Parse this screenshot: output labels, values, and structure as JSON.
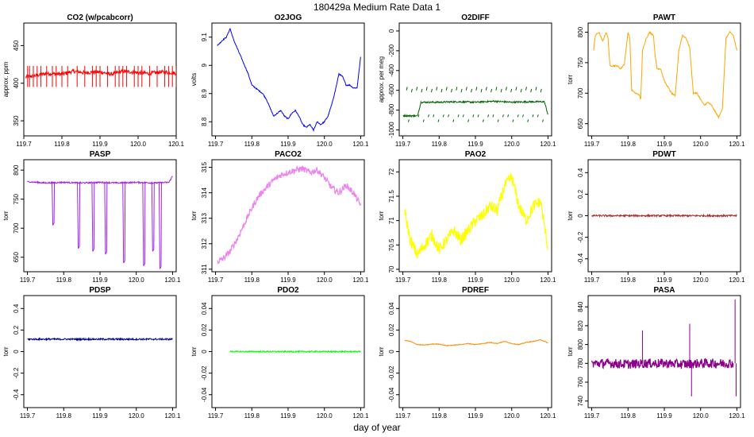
{
  "figure": {
    "title": "180429a   Medium Rate Data 1",
    "xlabel": "day of year"
  },
  "chart_data": [
    {
      "type": "line",
      "title": "CO2 (w/pcabcorr)",
      "ylabel": "approx. ppm",
      "color": "#ff0000",
      "xlim": [
        119.7,
        120.1
      ],
      "ylim": [
        330,
        480
      ],
      "xticks": [
        "119.7",
        "119.8",
        "119.9",
        "120.0",
        "120.1"
      ],
      "yticks": [
        350,
        400,
        450
      ],
      "series": [
        {
          "x": [
            119.705,
            119.73,
            119.76,
            119.8,
            119.83,
            119.86,
            119.9,
            119.93,
            119.96,
            120.0,
            120.03,
            120.06,
            120.09,
            120.1
          ],
          "y": [
            408,
            410,
            413,
            412,
            416,
            414,
            415,
            412,
            416,
            414,
            413,
            415,
            414,
            413
          ]
        }
      ],
      "spikes": {
        "x": [
          119.71,
          119.715,
          119.725,
          119.735,
          119.745,
          119.76,
          119.775,
          119.785,
          119.8,
          119.815,
          119.84,
          119.86,
          119.88,
          119.89,
          119.9,
          119.92,
          119.94,
          119.95,
          119.96,
          119.97,
          119.99,
          120.0,
          120.01,
          120.03,
          120.05,
          120.07,
          120.08,
          120.09,
          120.1
        ],
        "low": 395,
        "high": 423
      }
    },
    {
      "type": "line",
      "title": "O2JOG",
      "ylabel": "volts",
      "color": "#0000ff",
      "xlim": [
        119.69,
        120.11
      ],
      "ylim": [
        8.75,
        9.15
      ],
      "xticks": [
        "119.7",
        "119.8",
        "119.9",
        "120.0",
        "120.1"
      ],
      "yticks": [
        8.8,
        8.9,
        9.0,
        9.1
      ],
      "series": [
        {
          "x": [
            119.705,
            119.72,
            119.73,
            119.74,
            119.75,
            119.76,
            119.77,
            119.78,
            119.79,
            119.8,
            119.81,
            119.82,
            119.83,
            119.84,
            119.85,
            119.86,
            119.87,
            119.88,
            119.89,
            119.9,
            119.91,
            119.92,
            119.93,
            119.94,
            119.95,
            119.96,
            119.97,
            119.98,
            119.99,
            120.0,
            120.01,
            120.02,
            120.03,
            120.04,
            120.05,
            120.06,
            120.07,
            120.08,
            120.09,
            120.1
          ],
          "y": [
            9.07,
            9.09,
            9.1,
            9.13,
            9.09,
            9.06,
            9.03,
            9.0,
            8.97,
            8.93,
            8.92,
            8.91,
            8.9,
            8.88,
            8.85,
            8.82,
            8.83,
            8.84,
            8.82,
            8.81,
            8.83,
            8.84,
            8.82,
            8.79,
            8.78,
            8.79,
            8.77,
            8.8,
            8.79,
            8.8,
            8.82,
            8.86,
            8.91,
            8.97,
            8.96,
            8.93,
            8.93,
            8.92,
            8.92,
            9.03
          ]
        }
      ]
    },
    {
      "type": "line",
      "title": "O2DIFF",
      "ylabel": "approx. per meg",
      "color": "#006400",
      "xlim": [
        119.69,
        120.11
      ],
      "ylim": [
        -1060,
        80
      ],
      "xticks": [
        "119.7",
        "119.8",
        "119.9",
        "120.0",
        "120.1"
      ],
      "yticks": [
        -1000,
        -800,
        -600,
        -400,
        -200,
        0
      ],
      "series": [
        {
          "x": [
            119.7,
            119.74,
            119.75,
            119.8,
            119.85,
            119.9,
            119.95,
            120.0,
            120.05,
            120.09,
            120.1
          ],
          "y": [
            -855,
            -860,
            -720,
            -720,
            -715,
            -720,
            -710,
            -720,
            -715,
            -715,
            -845
          ]
        }
      ]
    },
    {
      "type": "line",
      "title": "PAWT",
      "ylabel": "torr",
      "color": "#ffa500",
      "xlim": [
        119.69,
        120.11
      ],
      "ylim": [
        630,
        815
      ],
      "xticks": [
        "119.7",
        "119.8",
        "119.9",
        "120.0",
        "120.1"
      ],
      "yticks": [
        650,
        700,
        750,
        800
      ],
      "series": [
        {
          "x": [
            119.705,
            119.71,
            119.72,
            119.73,
            119.74,
            119.745,
            119.75,
            119.77,
            119.78,
            119.79,
            119.8,
            119.805,
            119.81,
            119.82,
            119.83,
            119.835,
            119.84,
            119.85,
            119.86,
            119.87,
            119.875,
            119.88,
            119.89,
            119.9,
            119.91,
            119.92,
            119.93,
            119.94,
            119.95,
            119.96,
            119.97,
            119.98,
            119.99,
            120.0,
            120.01,
            120.02,
            120.03,
            120.04,
            120.05,
            120.06,
            120.07,
            120.08,
            120.09,
            120.1
          ],
          "y": [
            770,
            795,
            800,
            785,
            800,
            790,
            745,
            745,
            740,
            748,
            800,
            790,
            705,
            700,
            698,
            690,
            770,
            790,
            800,
            795,
            760,
            740,
            740,
            720,
            710,
            700,
            695,
            770,
            795,
            790,
            775,
            700,
            700,
            690,
            680,
            685,
            680,
            670,
            660,
            675,
            790,
            800,
            795,
            770
          ]
        }
      ]
    },
    {
      "type": "line",
      "title": "PASP",
      "ylabel": "torr",
      "color": "#a020f0",
      "xlim": [
        119.69,
        120.11
      ],
      "ylim": [
        625,
        818
      ],
      "xticks": [
        "119.7",
        "119.8",
        "119.9",
        "120.0",
        "120.1"
      ],
      "yticks": [
        650,
        700,
        750,
        800
      ],
      "series": [
        {
          "x": [
            119.7,
            119.75,
            119.8,
            119.85,
            119.9,
            119.95,
            120.0,
            120.05,
            120.09,
            120.1
          ],
          "y": [
            780,
            778,
            779,
            778,
            779,
            778,
            779,
            778,
            779,
            790
          ]
        }
      ],
      "dips": {
        "x": [
          119.77,
          119.84,
          119.88,
          119.915,
          119.965,
          120.02,
          120.045,
          120.065
        ],
        "y": [
          705,
          665,
          660,
          655,
          640,
          635,
          660,
          630
        ]
      }
    },
    {
      "type": "line",
      "title": "PACO2",
      "ylabel": "torr",
      "color": "#ee82ee",
      "xlim": [
        119.69,
        120.11
      ],
      "ylim": [
        310.9,
        315.3
      ],
      "xticks": [
        "119.7",
        "119.8",
        "119.9",
        "120.0",
        "120.1"
      ],
      "yticks": [
        311,
        312,
        313,
        314,
        315
      ],
      "series": [
        {
          "x": [
            119.705,
            119.72,
            119.74,
            119.76,
            119.78,
            119.8,
            119.82,
            119.84,
            119.86,
            119.88,
            119.9,
            119.92,
            119.94,
            119.96,
            119.98,
            120.0,
            120.02,
            120.04,
            120.06,
            120.08,
            120.1
          ],
          "y": [
            311.3,
            311.4,
            311.7,
            312.2,
            312.8,
            313.4,
            313.9,
            314.2,
            314.5,
            314.7,
            314.8,
            314.9,
            314.95,
            314.8,
            314.9,
            314.6,
            314.2,
            314.0,
            314.3,
            314.0,
            313.5
          ]
        }
      ]
    },
    {
      "type": "line",
      "title": "PAO2",
      "ylabel": "torr",
      "color": "#ffff00",
      "xlim": [
        119.69,
        120.11
      ],
      "ylim": [
        69.95,
        72.25
      ],
      "xticks": [
        "119.7",
        "119.8",
        "119.9",
        "120.0",
        "120.1"
      ],
      "yticks": [
        70.0,
        70.5,
        71.0,
        71.5,
        72.0
      ],
      "series": [
        {
          "x": [
            119.705,
            119.72,
            119.74,
            119.76,
            119.78,
            119.8,
            119.82,
            119.84,
            119.86,
            119.88,
            119.9,
            119.92,
            119.94,
            119.96,
            119.98,
            120.0,
            120.02,
            120.04,
            120.06,
            120.08,
            120.1
          ],
          "y": [
            71.2,
            70.6,
            70.3,
            70.5,
            70.7,
            70.4,
            70.6,
            70.8,
            70.6,
            70.8,
            71.0,
            71.1,
            71.3,
            71.2,
            71.7,
            71.9,
            71.3,
            71.0,
            71.3,
            71.4,
            70.4
          ]
        }
      ]
    },
    {
      "type": "line",
      "title": "PDWT",
      "ylabel": "torr",
      "color": "#a52a2a",
      "xlim": [
        119.69,
        120.11
      ],
      "ylim": [
        -0.52,
        0.52
      ],
      "xticks": [
        "119.7",
        "119.8",
        "119.9",
        "120.0",
        "120.1"
      ],
      "yticks": [
        -0.4,
        -0.2,
        0.0,
        0.2,
        0.4
      ],
      "series": [
        {
          "x": [
            119.7,
            120.1
          ],
          "y": [
            0.0,
            0.0
          ]
        }
      ]
    },
    {
      "type": "line",
      "title": "PDSP",
      "ylabel": "torr",
      "color": "#00008b",
      "xlim": [
        119.69,
        120.11
      ],
      "ylim": [
        -0.52,
        0.52
      ],
      "xticks": [
        "119.7",
        "119.8",
        "119.9",
        "120.0",
        "120.1"
      ],
      "yticks": [
        -0.4,
        -0.2,
        0.0,
        0.2,
        0.4
      ],
      "series": [
        {
          "x": [
            119.7,
            120.1
          ],
          "y": [
            0.115,
            0.115
          ]
        }
      ]
    },
    {
      "type": "line",
      "title": "PDO2",
      "ylabel": "torr",
      "color": "#00ff00",
      "xlim": [
        119.69,
        120.11
      ],
      "ylim": [
        -0.052,
        0.052
      ],
      "xticks": [
        "119.7",
        "119.8",
        "119.9",
        "120.0",
        "120.1"
      ],
      "yticks": [
        -0.04,
        -0.02,
        0.0,
        0.02,
        0.04
      ],
      "series": [
        {
          "x": [
            119.74,
            120.1
          ],
          "y": [
            0.0,
            0.0
          ]
        }
      ]
    },
    {
      "type": "line",
      "title": "PDREF",
      "ylabel": "torr",
      "color": "#ff8c00",
      "xlim": [
        119.69,
        120.11
      ],
      "ylim": [
        -0.052,
        0.052
      ],
      "xticks": [
        "119.7",
        "119.8",
        "119.9",
        "120.0",
        "120.1"
      ],
      "yticks": [
        -0.04,
        -0.02,
        0.0,
        0.02,
        0.04
      ],
      "series": [
        {
          "x": [
            119.705,
            119.72,
            119.74,
            119.76,
            119.78,
            119.8,
            119.82,
            119.84,
            119.86,
            119.88,
            119.9,
            119.92,
            119.94,
            119.96,
            119.98,
            120.0,
            120.02,
            120.04,
            120.06,
            120.08,
            120.1
          ],
          "y": [
            0.0105,
            0.0095,
            0.0065,
            0.006,
            0.007,
            0.007,
            0.0055,
            0.006,
            0.0065,
            0.0075,
            0.0065,
            0.0075,
            0.0085,
            0.0075,
            0.0095,
            0.0075,
            0.0065,
            0.0085,
            0.0095,
            0.011,
            0.008
          ]
        }
      ]
    },
    {
      "type": "line",
      "title": "PASA",
      "ylabel": "torr",
      "color": "#8b008b",
      "xlim": [
        119.69,
        120.11
      ],
      "ylim": [
        733,
        852
      ],
      "xticks": [
        "119.7",
        "119.8",
        "119.9",
        "120.0",
        "120.1"
      ],
      "yticks": [
        740,
        760,
        780,
        800,
        820,
        840
      ],
      "series": [
        {
          "x": [
            119.7,
            119.75,
            119.8,
            119.85,
            119.9,
            119.95,
            120.0,
            120.05,
            120.09
          ],
          "y": [
            780,
            780,
            779,
            780,
            780,
            779,
            780,
            780,
            780
          ]
        }
      ],
      "spikes": [
        {
          "x": 119.84,
          "y": 815
        },
        {
          "x": 119.97,
          "y": 822
        },
        {
          "x": 119.975,
          "y": 745
        },
        {
          "x": 120.095,
          "y": 848
        },
        {
          "x": 120.098,
          "y": 745
        }
      ]
    }
  ]
}
